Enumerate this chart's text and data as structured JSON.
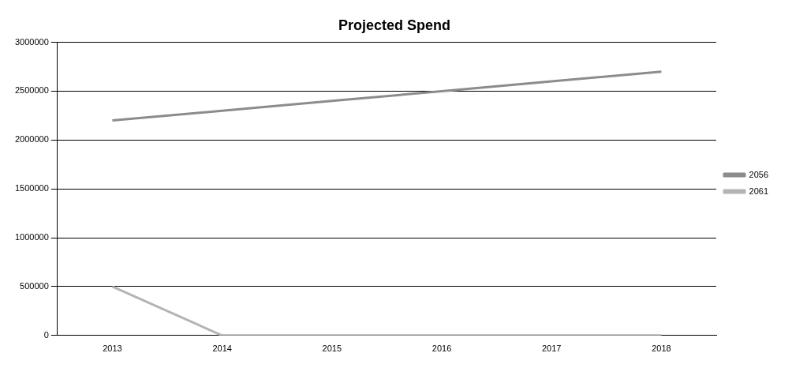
{
  "chart_data": {
    "type": "line",
    "title": "Projected Spend",
    "categories": [
      "2013",
      "2014",
      "2015",
      "2016",
      "2017",
      "2018"
    ],
    "series": [
      {
        "name": "2056",
        "color": "#8c8c8c",
        "values": [
          2200000,
          2300000,
          2400000,
          2500000,
          2600000,
          2700000
        ]
      },
      {
        "name": "2061",
        "color": "#b4b4b4",
        "values": [
          500000,
          0,
          0,
          0,
          0,
          0
        ]
      }
    ],
    "ylim": [
      0,
      3000000
    ],
    "yticks": [
      0,
      500000,
      1000000,
      1500000,
      2000000,
      2500000,
      3000000
    ],
    "grid": "y",
    "legend": "right",
    "marker": "none",
    "line_style": "solid"
  }
}
